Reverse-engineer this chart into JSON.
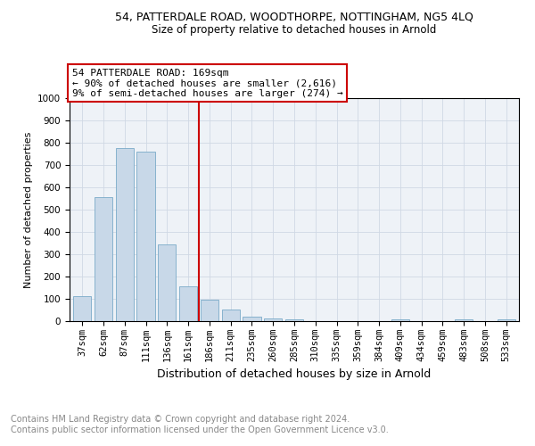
{
  "title_line1": "54, PATTERDALE ROAD, WOODTHORPE, NOTTINGHAM, NG5 4LQ",
  "title_line2": "Size of property relative to detached houses in Arnold",
  "xlabel": "Distribution of detached houses by size in Arnold",
  "ylabel": "Number of detached properties",
  "categories": [
    "37sqm",
    "62sqm",
    "87sqm",
    "111sqm",
    "136sqm",
    "161sqm",
    "186sqm",
    "211sqm",
    "235sqm",
    "260sqm",
    "285sqm",
    "310sqm",
    "335sqm",
    "359sqm",
    "384sqm",
    "409sqm",
    "434sqm",
    "459sqm",
    "483sqm",
    "508sqm",
    "533sqm"
  ],
  "values": [
    113,
    557,
    775,
    762,
    344,
    158,
    96,
    52,
    20,
    13,
    8,
    0,
    0,
    0,
    0,
    10,
    0,
    0,
    8,
    0,
    8
  ],
  "bar_color": "#c8d8e8",
  "bar_edge_color": "#7aaac8",
  "property_line_x": 5.5,
  "property_line_color": "#cc0000",
  "annotation_text": "54 PATTERDALE ROAD: 169sqm\n← 90% of detached houses are smaller (2,616)\n9% of semi-detached houses are larger (274) →",
  "annotation_box_color": "#ffffff",
  "annotation_box_edge_color": "#cc0000",
  "ylim": [
    0,
    1000
  ],
  "yticks": [
    0,
    100,
    200,
    300,
    400,
    500,
    600,
    700,
    800,
    900,
    1000
  ],
  "grid_color": "#d0d8e4",
  "background_color": "#eef2f7",
  "footer_text": "Contains HM Land Registry data © Crown copyright and database right 2024.\nContains public sector information licensed under the Open Government Licence v3.0.",
  "title_fontsize": 9,
  "subtitle_fontsize": 8.5,
  "xlabel_fontsize": 9,
  "ylabel_fontsize": 8,
  "tick_fontsize": 7.5,
  "annotation_fontsize": 8,
  "footer_fontsize": 7
}
